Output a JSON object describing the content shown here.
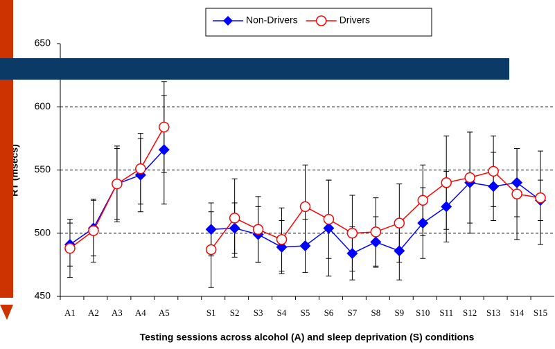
{
  "chart_data": {
    "type": "line",
    "title_y": "RT (msecs)",
    "x_label": "Testing sessions across alcohol (A) and sleep deprivation (S) conditions",
    "categories": [
      "A1",
      "A2",
      "A3",
      "A4",
      "A5",
      null,
      "S1",
      "S2",
      "S3",
      "S4",
      "S5",
      "S6",
      "S7",
      "S8",
      "S9",
      "S10",
      "S11",
      "S12",
      "S13",
      "S14",
      "S15"
    ],
    "series": [
      {
        "name": "Non-Drivers",
        "color": "#0000ff",
        "marker": "diamond",
        "values": [
          491,
          504,
          539,
          546,
          566,
          null,
          503,
          504,
          499,
          489,
          490,
          504,
          484,
          493,
          486,
          508,
          521,
          540,
          537,
          540,
          526
        ],
        "errors": [
          17,
          22,
          28,
          29,
          43,
          null,
          21,
          20,
          22,
          21,
          21,
          38,
          21,
          20,
          23,
          28,
          28,
          40,
          27,
          27,
          16
        ]
      },
      {
        "name": "Drivers",
        "color": "#ff0000",
        "marker": "circle",
        "values": [
          488,
          502,
          539,
          551,
          584,
          null,
          487,
          512,
          503,
          495,
          521,
          511,
          500,
          501,
          508,
          526,
          540,
          544,
          549,
          531,
          528
        ],
        "errors": [
          23,
          25,
          30,
          28,
          36,
          null,
          30,
          31,
          26,
          25,
          33,
          31,
          30,
          27,
          31,
          28,
          37,
          36,
          28,
          36,
          37
        ]
      }
    ],
    "ylim": [
      450,
      650
    ],
    "yticks": [
      450,
      500,
      550,
      600,
      650
    ],
    "grid": true,
    "legend": "top-center"
  }
}
